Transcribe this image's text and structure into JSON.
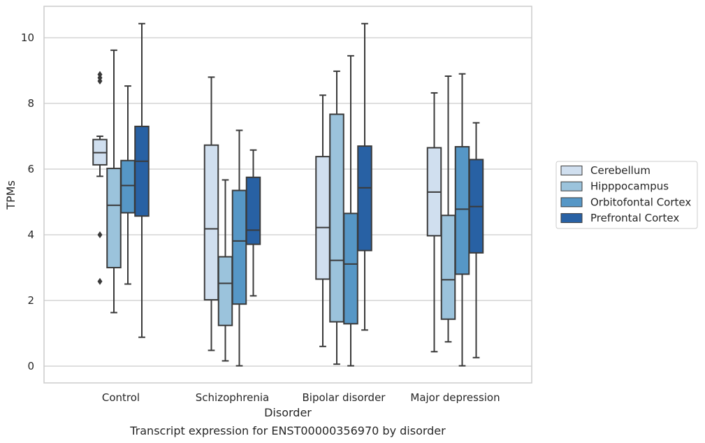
{
  "chart_data": {
    "type": "box",
    "caption": "Transcript expression for ENST00000356970 by disorder",
    "xlabel": "Disorder",
    "ylabel": "TPMs",
    "ylim": [
      -0.5,
      10.9
    ],
    "yticks": [
      0,
      2,
      4,
      6,
      8,
      10
    ],
    "categories": [
      "Control",
      "Schizophrenia",
      "Bipolar disorder",
      "Major depression"
    ],
    "grid": true,
    "legend_position": "right",
    "series": [
      {
        "name": "Cerebellum",
        "color": "#d0dfef",
        "boxes": [
          {
            "whisker_low": 5.78,
            "q1": 6.13,
            "median": 6.5,
            "q3": 6.9,
            "whisker_high": 7.0,
            "outliers": [
              8.88,
              8.78,
              8.68,
              4.0,
              2.58
            ]
          },
          {
            "whisker_low": 0.48,
            "q1": 2.02,
            "median": 4.18,
            "q3": 6.73,
            "whisker_high": 8.8,
            "outliers": []
          },
          {
            "whisker_low": 0.6,
            "q1": 2.65,
            "median": 4.22,
            "q3": 6.38,
            "whisker_high": 8.25,
            "outliers": []
          },
          {
            "whisker_low": 0.44,
            "q1": 3.97,
            "median": 5.3,
            "q3": 6.65,
            "whisker_high": 8.32,
            "outliers": []
          }
        ]
      },
      {
        "name": "Hipppocampus",
        "color": "#9bc3dc",
        "boxes": [
          {
            "whisker_low": 1.63,
            "q1": 3.0,
            "median": 4.9,
            "q3": 6.02,
            "whisker_high": 9.62,
            "outliers": []
          },
          {
            "whisker_low": 0.16,
            "q1": 1.24,
            "median": 2.52,
            "q3": 3.33,
            "whisker_high": 5.67,
            "outliers": []
          },
          {
            "whisker_low": 0.06,
            "q1": 1.35,
            "median": 3.22,
            "q3": 7.67,
            "whisker_high": 8.98,
            "outliers": []
          },
          {
            "whisker_low": 0.74,
            "q1": 1.43,
            "median": 2.63,
            "q3": 4.59,
            "whisker_high": 8.83,
            "outliers": []
          }
        ]
      },
      {
        "name": "Orbitofontal Cortex",
        "color": "#5697c6",
        "boxes": [
          {
            "whisker_low": 2.5,
            "q1": 4.67,
            "median": 5.5,
            "q3": 6.26,
            "whisker_high": 8.53,
            "outliers": []
          },
          {
            "whisker_low": 0.01,
            "q1": 1.89,
            "median": 3.81,
            "q3": 5.35,
            "whisker_high": 7.18,
            "outliers": []
          },
          {
            "whisker_low": 0.01,
            "q1": 1.29,
            "median": 3.11,
            "q3": 4.65,
            "whisker_high": 9.45,
            "outliers": []
          },
          {
            "whisker_low": 0.01,
            "q1": 2.8,
            "median": 4.78,
            "q3": 6.68,
            "whisker_high": 8.9,
            "outliers": []
          }
        ]
      },
      {
        "name": "Prefrontal Cortex",
        "color": "#2861a4",
        "boxes": [
          {
            "whisker_low": 0.88,
            "q1": 4.57,
            "median": 6.24,
            "q3": 7.3,
            "whisker_high": 10.43,
            "outliers": []
          },
          {
            "whisker_low": 2.14,
            "q1": 3.71,
            "median": 4.14,
            "q3": 5.75,
            "whisker_high": 6.58,
            "outliers": []
          },
          {
            "whisker_low": 1.1,
            "q1": 3.52,
            "median": 5.43,
            "q3": 6.7,
            "whisker_high": 10.43,
            "outliers": []
          },
          {
            "whisker_low": 0.26,
            "q1": 3.45,
            "median": 4.86,
            "q3": 6.29,
            "whisker_high": 7.41,
            "outliers": []
          }
        ]
      }
    ]
  }
}
